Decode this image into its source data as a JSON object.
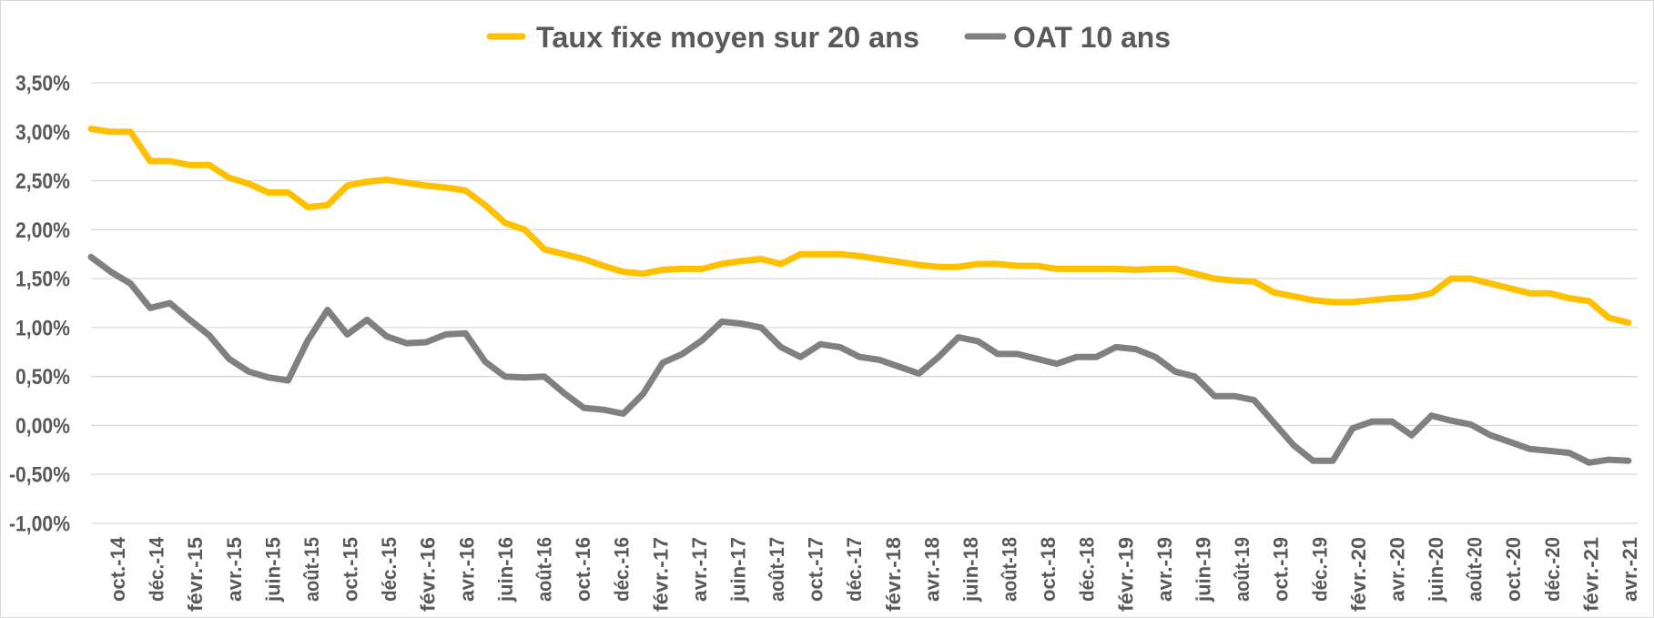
{
  "chart_data": {
    "type": "line",
    "title": "",
    "xlabel": "",
    "ylabel": "",
    "ylim": [
      -1.0,
      3.5
    ],
    "y_ticks": [
      "3,50%",
      "3,00%",
      "2,50%",
      "2,00%",
      "1,50%",
      "1,00%",
      "0,50%",
      "0,00%",
      "-0,50%",
      "-1,00%"
    ],
    "y_tick_values": [
      3.5,
      3.0,
      2.5,
      2.0,
      1.5,
      1.0,
      0.5,
      0.0,
      -0.5,
      -1.0
    ],
    "grid": true,
    "legend_position": "top",
    "x_interval": "monthly",
    "x_tick_labels": [
      "oct.-14",
      "déc.-14",
      "févr.-15",
      "avr.-15",
      "juin-15",
      "août-15",
      "oct.-15",
      "déc.-15",
      "févr.-16",
      "avr.-16",
      "juin-16",
      "août-16",
      "oct.-16",
      "déc.-16",
      "févr.-17",
      "avr.-17",
      "juin-17",
      "août-17",
      "oct.-17",
      "déc.-17",
      "févr.-18",
      "avr.-18",
      "juin-18",
      "août-18",
      "oct.-18",
      "déc.-18",
      "févr.-19",
      "avr.-19",
      "juin-19",
      "août-19",
      "oct.-19",
      "déc.-19",
      "févr.-20",
      "avr.-20",
      "juin-20",
      "août-20",
      "oct.-20",
      "déc.-20",
      "févr.-21",
      "avr.-21"
    ],
    "series": [
      {
        "name": "Taux fixe moyen sur 20 ans",
        "color": "#FFC000",
        "values": [
          3.03,
          3.0,
          3.0,
          2.7,
          2.7,
          2.66,
          2.66,
          2.53,
          2.47,
          2.38,
          2.38,
          2.23,
          2.25,
          2.45,
          2.49,
          2.51,
          2.48,
          2.45,
          2.43,
          2.4,
          2.25,
          2.07,
          2.0,
          1.8,
          1.75,
          1.7,
          1.63,
          1.57,
          1.55,
          1.59,
          1.6,
          1.6,
          1.65,
          1.68,
          1.7,
          1.65,
          1.75,
          1.75,
          1.75,
          1.73,
          1.7,
          1.67,
          1.64,
          1.62,
          1.62,
          1.65,
          1.65,
          1.63,
          1.63,
          1.6,
          1.6,
          1.6,
          1.6,
          1.59,
          1.6,
          1.6,
          1.55,
          1.5,
          1.48,
          1.47,
          1.36,
          1.32,
          1.28,
          1.26,
          1.26,
          1.28,
          1.3,
          1.31,
          1.35,
          1.5,
          1.5,
          1.45,
          1.4,
          1.35,
          1.35,
          1.3,
          1.27,
          1.1,
          1.05
        ]
      },
      {
        "name": "OAT 10 ans",
        "color": "#808080",
        "values": [
          1.72,
          1.57,
          1.45,
          1.2,
          1.25,
          1.08,
          0.92,
          0.68,
          0.55,
          0.49,
          0.46,
          0.87,
          1.18,
          0.93,
          1.08,
          0.91,
          0.84,
          0.85,
          0.93,
          0.94,
          0.65,
          0.5,
          0.49,
          0.5,
          0.33,
          0.18,
          0.16,
          0.12,
          0.32,
          0.64,
          0.73,
          0.87,
          1.06,
          1.04,
          1.0,
          0.8,
          0.7,
          0.83,
          0.8,
          0.7,
          0.67,
          0.6,
          0.53,
          0.7,
          0.9,
          0.86,
          0.73,
          0.73,
          0.68,
          0.63,
          0.7,
          0.7,
          0.8,
          0.78,
          0.7,
          0.55,
          0.5,
          0.3,
          0.3,
          0.26,
          0.03,
          -0.2,
          -0.36,
          -0.36,
          -0.03,
          0.04,
          0.04,
          -0.1,
          0.1,
          0.05,
          0.01,
          -0.1,
          -0.17,
          -0.24,
          -0.26,
          -0.28,
          -0.38,
          -0.35,
          -0.36
        ]
      }
    ]
  },
  "colors": {
    "text": "#595959",
    "grid": "#D9D9D9"
  }
}
